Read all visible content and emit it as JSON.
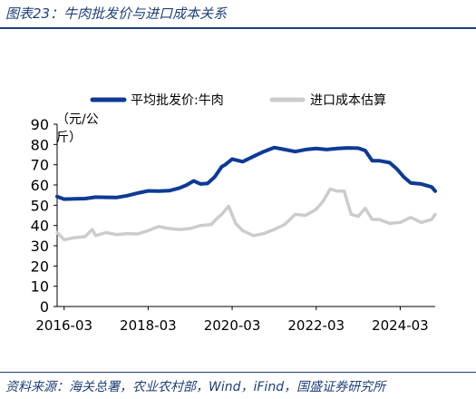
{
  "figure": {
    "title": "图表23：牛肉批发价与进口成本关系",
    "source": "资料来源：海关总署，农业农村部，Wind，iFind，国盛证券研究所"
  },
  "colors": {
    "header": "#1f3f7a",
    "series_wholesale": "#0d3a95",
    "series_import": "#cccccc",
    "axis": "#000000"
  },
  "chart_data": {
    "type": "line",
    "ylabel": "（元/公斤）",
    "ylabel_lines": [
      "（元/公",
      "斤）"
    ],
    "ylim": [
      0,
      90
    ],
    "yticks": [
      0,
      10,
      20,
      30,
      40,
      50,
      60,
      70,
      80,
      90
    ],
    "xlim": [
      "2016-01",
      "2025-01"
    ],
    "xticks": [
      "2016-03",
      "2018-03",
      "2020-03",
      "2022-03",
      "2024-03"
    ],
    "legend_position": "top",
    "grid": false,
    "series": [
      {
        "name": "平均批发价:牛肉",
        "x": [
          "2016-01",
          "2016-03",
          "2016-06",
          "2016-09",
          "2016-12",
          "2017-03",
          "2017-06",
          "2017-09",
          "2017-12",
          "2018-03",
          "2018-06",
          "2018-09",
          "2018-12",
          "2019-02",
          "2019-04",
          "2019-06",
          "2019-08",
          "2019-10",
          "2019-12",
          "2020-01",
          "2020-03",
          "2020-06",
          "2020-09",
          "2020-12",
          "2021-03",
          "2021-06",
          "2021-09",
          "2021-12",
          "2022-03",
          "2022-06",
          "2022-09",
          "2022-12",
          "2023-03",
          "2023-05",
          "2023-07",
          "2023-09",
          "2023-12",
          "2024-02",
          "2024-04",
          "2024-06",
          "2024-09",
          "2024-12",
          "2025-01"
        ],
        "values": [
          54.3,
          53.0,
          53.2,
          53.3,
          54.0,
          53.9,
          53.8,
          54.7,
          56.0,
          57.1,
          57.0,
          57.2,
          58.5,
          60.0,
          62.0,
          60.5,
          60.8,
          64.0,
          69.0,
          70.0,
          72.8,
          71.5,
          74.0,
          76.5,
          78.5,
          77.5,
          76.5,
          77.5,
          78.0,
          77.5,
          78.0,
          78.3,
          78.2,
          77.0,
          72.0,
          72.0,
          71.0,
          68.0,
          64.0,
          61.0,
          60.5,
          59.0,
          57.0
        ]
      },
      {
        "name": "进口成本估算",
        "x": [
          "2016-01",
          "2016-03",
          "2016-06",
          "2016-09",
          "2016-11",
          "2016-12",
          "2017-03",
          "2017-06",
          "2017-09",
          "2017-12",
          "2018-03",
          "2018-06",
          "2018-09",
          "2018-12",
          "2019-03",
          "2019-06",
          "2019-09",
          "2019-11",
          "2019-12",
          "2020-02",
          "2020-04",
          "2020-06",
          "2020-09",
          "2020-12",
          "2021-03",
          "2021-06",
          "2021-09",
          "2021-12",
          "2022-03",
          "2022-05",
          "2022-07",
          "2022-09",
          "2022-11",
          "2023-01",
          "2023-03",
          "2023-05",
          "2023-07",
          "2023-09",
          "2023-12",
          "2024-03",
          "2024-06",
          "2024-09",
          "2024-12",
          "2025-01"
        ],
        "values": [
          36.5,
          33.0,
          34.0,
          34.5,
          38.0,
          35.0,
          36.5,
          35.5,
          36.0,
          35.8,
          37.5,
          39.5,
          38.5,
          38.0,
          38.5,
          40.0,
          40.5,
          44.0,
          45.5,
          49.5,
          41.0,
          37.5,
          35.0,
          36.0,
          38.0,
          40.5,
          45.5,
          45.0,
          48.0,
          52.0,
          58.0,
          57.0,
          57.0,
          45.5,
          44.5,
          48.5,
          43.0,
          43.0,
          41.0,
          41.5,
          44.0,
          41.5,
          43.0,
          45.5
        ]
      }
    ]
  }
}
